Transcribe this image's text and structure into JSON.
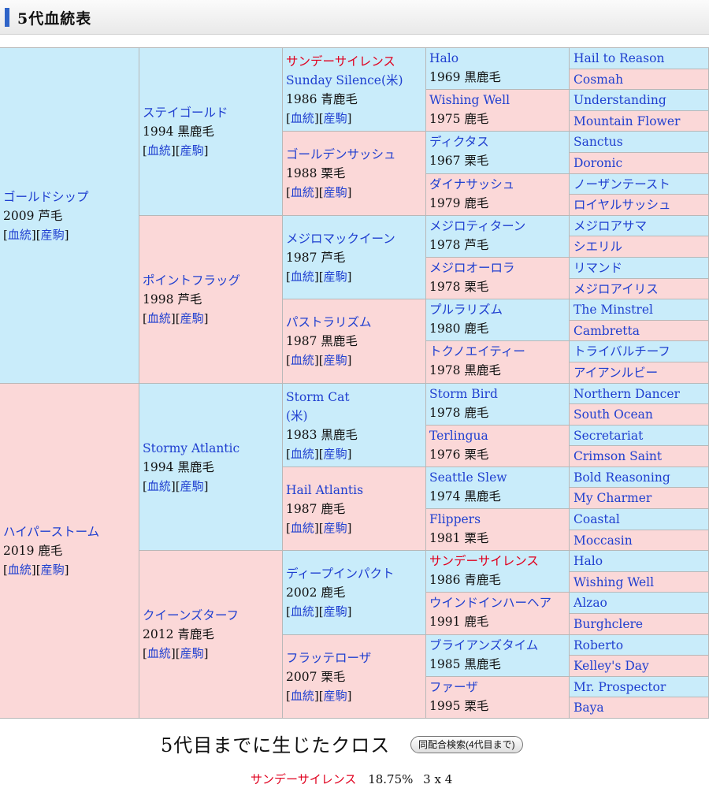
{
  "header": {
    "title": "5代血統表"
  },
  "links": {
    "pedigree": "血統",
    "progeny": "産駒"
  },
  "gen1": [
    {
      "name": "ゴールドシップ",
      "info": "2009 芦毛",
      "sex": "male"
    },
    {
      "name": "ハイパーストーム",
      "info": "2019 鹿毛",
      "sex": "female"
    }
  ],
  "gen2": [
    {
      "name": "ステイゴールド",
      "info": "1994 黒鹿毛",
      "sex": "male"
    },
    {
      "name": "ポイントフラッグ",
      "info": "1998 芦毛",
      "sex": "female"
    },
    {
      "name": "Stormy Atlantic",
      "info": "1994 黒鹿毛",
      "sex": "male"
    },
    {
      "name": "クイーンズターフ",
      "info": "2012 青鹿毛",
      "sex": "female"
    }
  ],
  "gen3": [
    {
      "name": "サンデーサイレンス",
      "name2": "Sunday Silence(米)",
      "info": "1986 青鹿毛",
      "sex": "male",
      "red": true
    },
    {
      "name": "ゴールデンサッシュ",
      "info": "1988 栗毛",
      "sex": "female"
    },
    {
      "name": "メジロマックイーン",
      "info": "1987 芦毛",
      "sex": "male"
    },
    {
      "name": "パストラリズム",
      "info": "1987 黒鹿毛",
      "sex": "female"
    },
    {
      "name": "Storm Cat",
      "name2": "(米)",
      "info": "1983 黒鹿毛",
      "sex": "male"
    },
    {
      "name": "Hail Atlantis",
      "info": "1987 鹿毛",
      "sex": "female"
    },
    {
      "name": "ディープインパクト",
      "info": "2002 鹿毛",
      "sex": "male"
    },
    {
      "name": "フラッテローザ",
      "info": "2007 栗毛",
      "sex": "female"
    }
  ],
  "gen4": [
    {
      "name": "Halo",
      "info": "1969 黒鹿毛",
      "sex": "male"
    },
    {
      "name": "Wishing Well",
      "info": "1975 鹿毛",
      "sex": "female"
    },
    {
      "name": "ディクタス",
      "info": "1967 栗毛",
      "sex": "male"
    },
    {
      "name": "ダイナサッシュ",
      "info": "1979 鹿毛",
      "sex": "female"
    },
    {
      "name": "メジロティターン",
      "info": "1978 芦毛",
      "sex": "male"
    },
    {
      "name": "メジロオーロラ",
      "info": "1978 栗毛",
      "sex": "female"
    },
    {
      "name": "プルラリズム",
      "info": "1980 鹿毛",
      "sex": "male"
    },
    {
      "name": "トクノエイティー",
      "info": "1978 黒鹿毛",
      "sex": "female"
    },
    {
      "name": "Storm Bird",
      "info": "1978 鹿毛",
      "sex": "male"
    },
    {
      "name": "Terlingua",
      "info": "1976 栗毛",
      "sex": "female"
    },
    {
      "name": "Seattle Slew",
      "info": "1974 黒鹿毛",
      "sex": "male"
    },
    {
      "name": "Flippers",
      "info": "1981 栗毛",
      "sex": "female"
    },
    {
      "name": "サンデーサイレンス",
      "info": "1986 青鹿毛",
      "sex": "male",
      "red": true
    },
    {
      "name": "ウインドインハーヘア",
      "info": "1991 鹿毛",
      "sex": "female"
    },
    {
      "name": "ブライアンズタイム",
      "info": "1985 黒鹿毛",
      "sex": "male"
    },
    {
      "name": "ファーザ",
      "info": "1995 栗毛",
      "sex": "female"
    }
  ],
  "gen5": [
    {
      "name": "Hail to Reason",
      "sex": "male"
    },
    {
      "name": "Cosmah",
      "sex": "female"
    },
    {
      "name": "Understanding",
      "sex": "male"
    },
    {
      "name": "Mountain Flower",
      "sex": "female"
    },
    {
      "name": "Sanctus",
      "sex": "male"
    },
    {
      "name": "Doronic",
      "sex": "female"
    },
    {
      "name": "ノーザンテースト",
      "sex": "male"
    },
    {
      "name": "ロイヤルサッシュ",
      "sex": "female"
    },
    {
      "name": "メジロアサマ",
      "sex": "male"
    },
    {
      "name": "シエリル",
      "sex": "female"
    },
    {
      "name": "リマンド",
      "sex": "male"
    },
    {
      "name": "メジロアイリス",
      "sex": "female"
    },
    {
      "name": "The Minstrel",
      "sex": "male"
    },
    {
      "name": "Cambretta",
      "sex": "female"
    },
    {
      "name": "トライバルチーフ",
      "sex": "male"
    },
    {
      "name": "アイアンルビー",
      "sex": "female"
    },
    {
      "name": "Northern Dancer",
      "sex": "male"
    },
    {
      "name": "South Ocean",
      "sex": "female"
    },
    {
      "name": "Secretariat",
      "sex": "male"
    },
    {
      "name": "Crimson Saint",
      "sex": "female"
    },
    {
      "name": "Bold Reasoning",
      "sex": "male"
    },
    {
      "name": "My Charmer",
      "sex": "female"
    },
    {
      "name": "Coastal",
      "sex": "male"
    },
    {
      "name": "Moccasin",
      "sex": "female"
    },
    {
      "name": "Halo",
      "sex": "male"
    },
    {
      "name": "Wishing Well",
      "sex": "female"
    },
    {
      "name": "Alzao",
      "sex": "male"
    },
    {
      "name": "Burghclere",
      "sex": "female"
    },
    {
      "name": "Roberto",
      "sex": "male"
    },
    {
      "name": "Kelley's Day",
      "sex": "female"
    },
    {
      "name": "Mr. Prospector",
      "sex": "male"
    },
    {
      "name": "Baya",
      "sex": "female"
    }
  ],
  "cross": {
    "title": "5代目までに生じたクロス",
    "button": "同配合検索(4代目まで)",
    "items": [
      {
        "name": "サンデーサイレンス",
        "percent": "18.75%",
        "pattern": "3 x 4"
      }
    ]
  },
  "colors": {
    "male": "#c9ecfa",
    "female": "#fbd8d8",
    "link": "#1f3fd0",
    "highlight": "#e0001e"
  }
}
